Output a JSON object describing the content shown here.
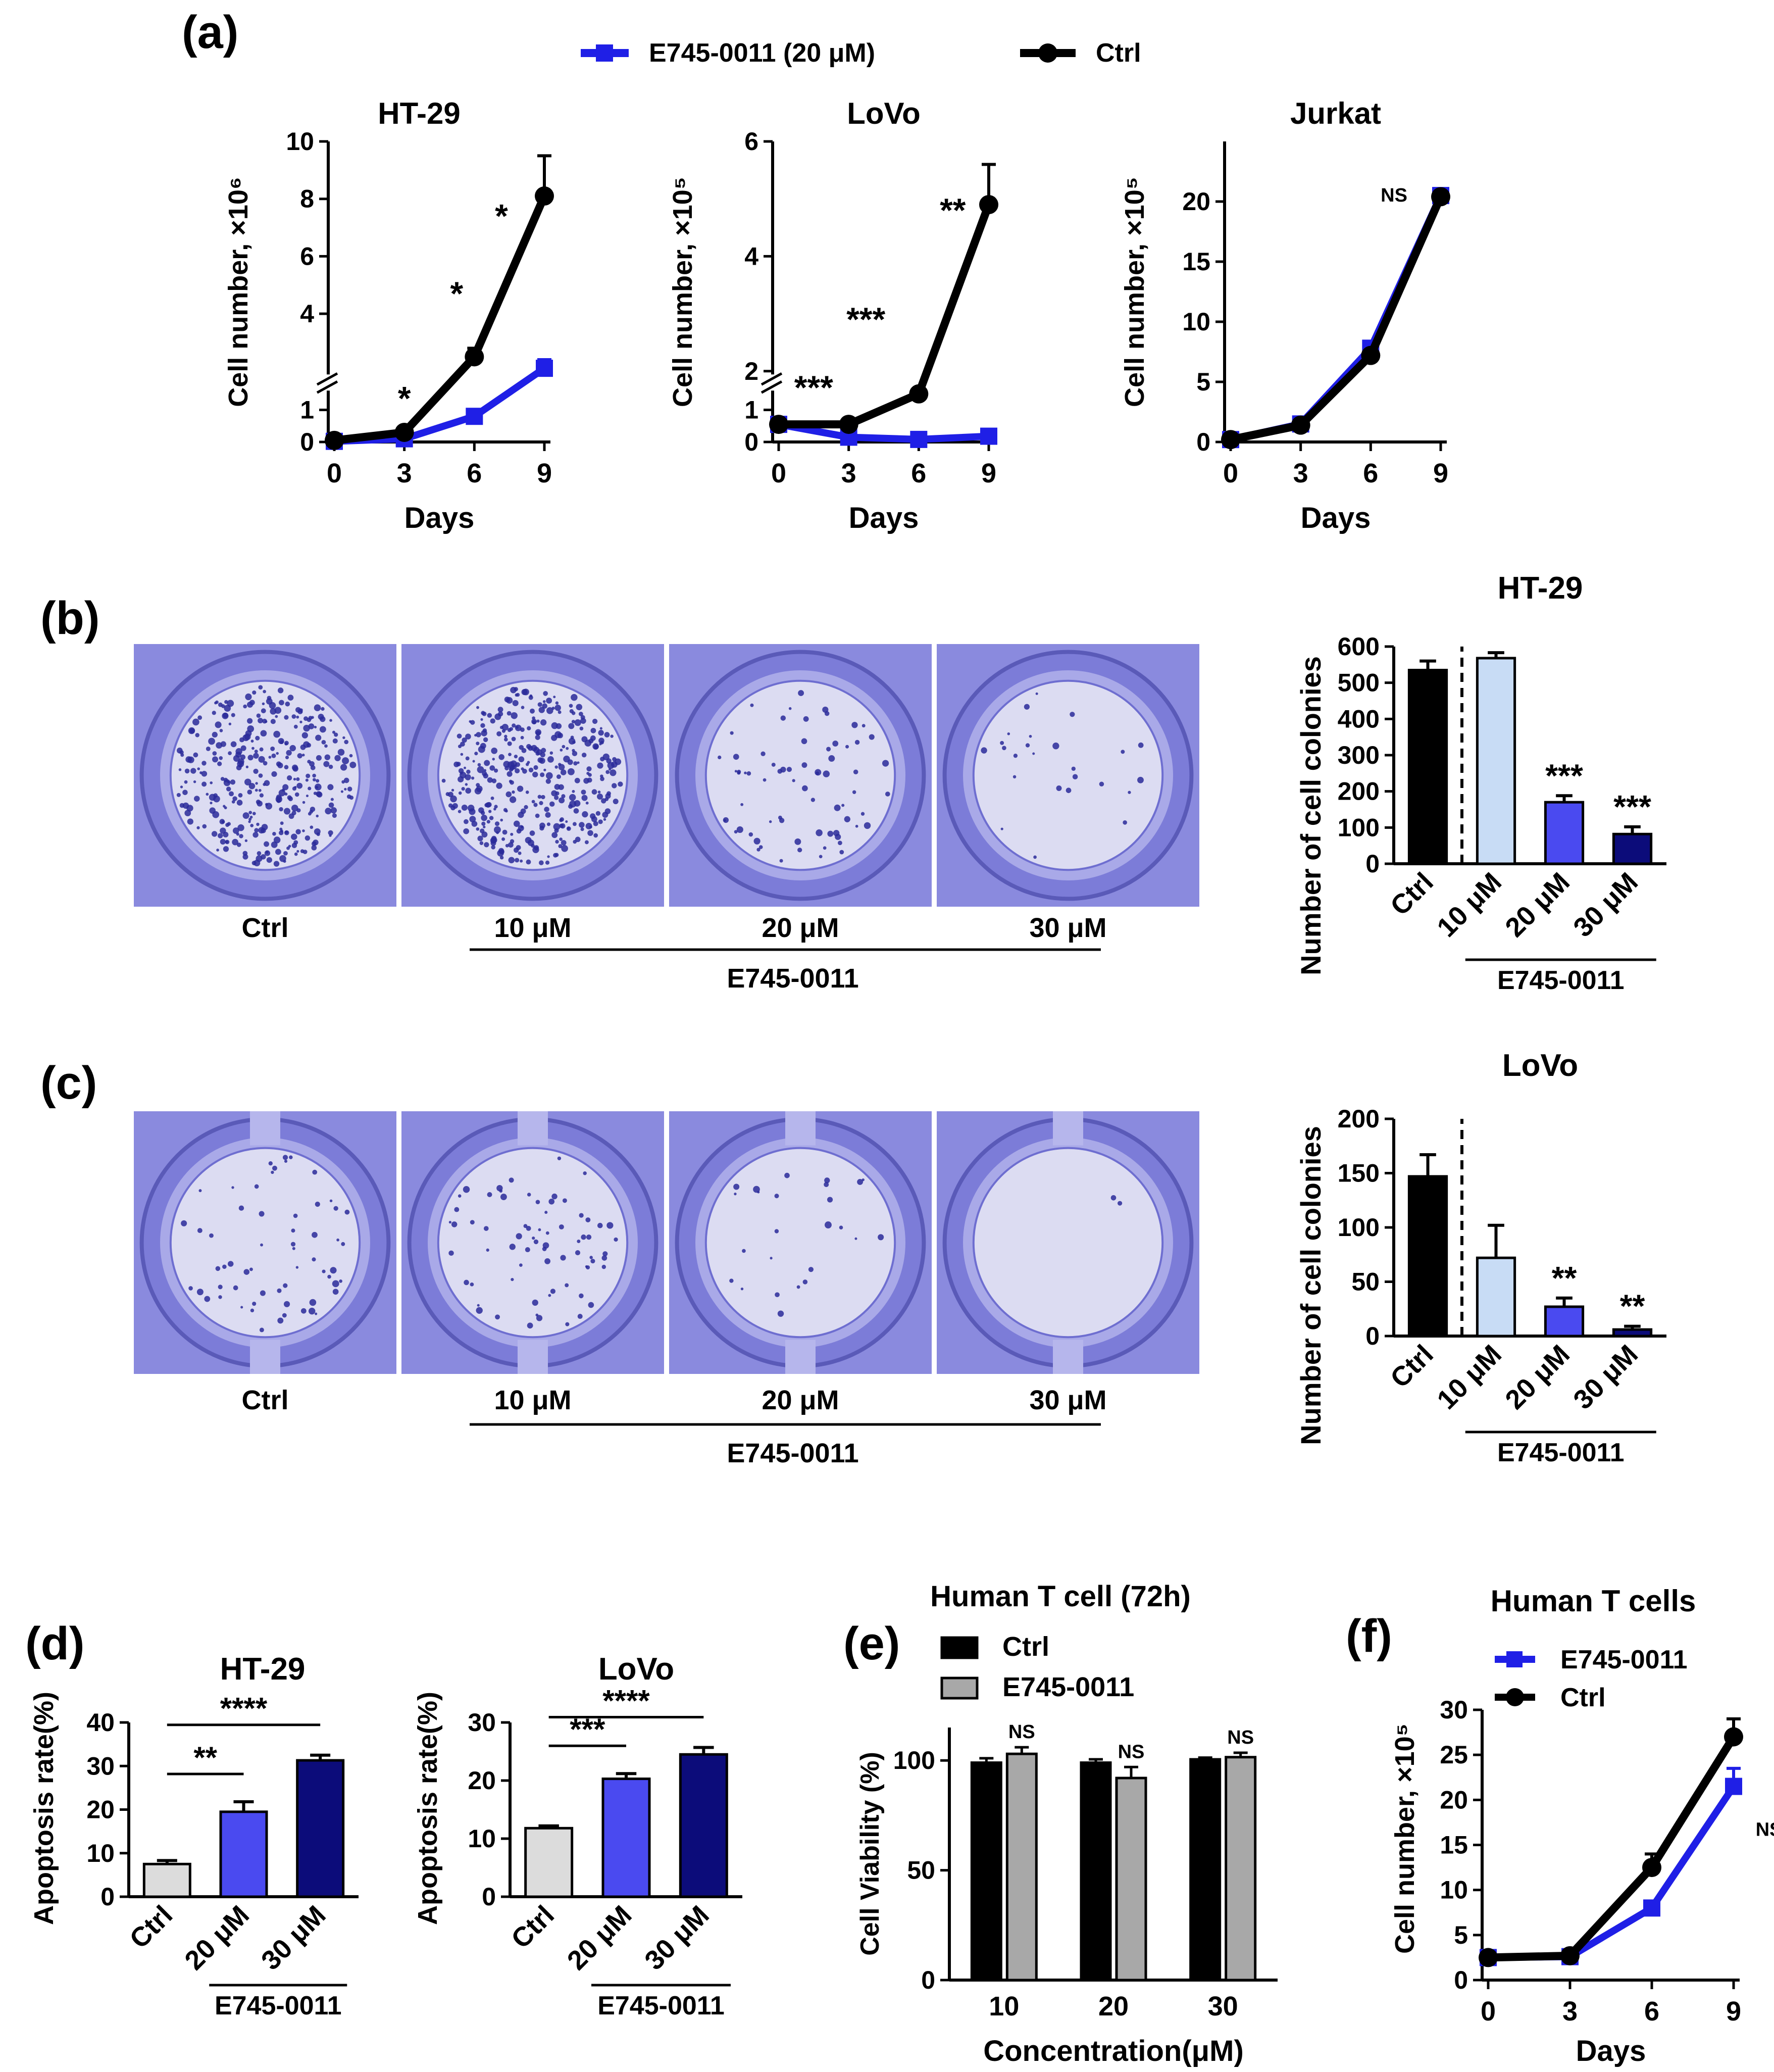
{
  "colors": {
    "ctrl": "#000000",
    "treat": "#1f1fe6",
    "light_blue": "#c8dcf5",
    "mid_blue": "#4a4af0",
    "dark_blue": "#0c0c7a",
    "light_gray": "#dcdcdc",
    "gray_bar": "#a8a8a8",
    "plate": "#8a8ade",
    "plate_inner": "#dcdcf2"
  },
  "panel_labels": {
    "a": "(a)",
    "b": "(b)",
    "c": "(c)",
    "d": "(d)",
    "e": "(e)",
    "f": "(f)"
  },
  "legend_a": {
    "treat": "E745-0011 (20 μM)",
    "ctrl": "Ctrl"
  },
  "plates": {
    "labels": [
      "Ctrl",
      "10 μM",
      "20 μM",
      "30 μM"
    ],
    "group": "E745-0011",
    "b_colony_density": [
      340,
      380,
      70,
      25
    ],
    "c_colony_density": [
      60,
      70,
      25,
      2
    ]
  },
  "chart_data": [
    {
      "id": "a1",
      "type": "line",
      "title": "HT-29",
      "xlabel": "Days",
      "ylabel": "Cell number, ×10⁶",
      "x": [
        0,
        3,
        6,
        9
      ],
      "xlim": [
        0,
        9
      ],
      "ylim": [
        0,
        10
      ],
      "axis_break": [
        1.5,
        2
      ],
      "yticks": [
        0,
        1,
        4,
        6,
        8,
        10
      ],
      "xticks": [
        0,
        3,
        6,
        9
      ],
      "series": [
        {
          "name": "Ctrl",
          "values": [
            0.05,
            0.3,
            2.5,
            8.1
          ],
          "errors": [
            0.02,
            0.05,
            0.3,
            1.4
          ]
        },
        {
          "name": "E745-0011 (20 μM)",
          "values": [
            0.02,
            0.1,
            0.8,
            2.1
          ],
          "errors": [
            0.01,
            0.03,
            0.15,
            0.3
          ]
        }
      ],
      "annotations": [
        {
          "x": 3,
          "text": "*"
        },
        {
          "x": 6,
          "text": "*"
        },
        {
          "x": 9,
          "text": "*"
        }
      ]
    },
    {
      "id": "a2",
      "type": "line",
      "title": "LoVo",
      "xlabel": "Days",
      "ylabel": "Cell number, ×10⁵",
      "x": [
        0,
        3,
        6,
        9
      ],
      "xlim": [
        0,
        9
      ],
      "ylim": [
        0,
        6
      ],
      "axis_break": [
        1.5,
        2
      ],
      "yticks": [
        0,
        1,
        2,
        4,
        6
      ],
      "xticks": [
        0,
        3,
        6,
        9
      ],
      "series": [
        {
          "name": "Ctrl",
          "values": [
            0.55,
            0.55,
            1.5,
            4.9
          ],
          "errors": [
            0.03,
            0.03,
            0.05,
            0.7
          ]
        },
        {
          "name": "E745-0011 (20 μM)",
          "values": [
            0.55,
            0.15,
            0.08,
            0.18
          ],
          "errors": [
            0.05,
            0.05,
            0.03,
            0.05
          ]
        }
      ],
      "annotations": [
        {
          "x": 1.5,
          "text": "***"
        },
        {
          "x": 4.5,
          "text": "***"
        },
        {
          "x": 8,
          "text": "**"
        }
      ]
    },
    {
      "id": "a3",
      "type": "line",
      "title": "Jurkat",
      "xlabel": "Days",
      "ylabel": "Cell number, ×10⁵",
      "x": [
        0,
        3,
        6,
        9
      ],
      "xlim": [
        0,
        9
      ],
      "ylim": [
        0,
        25
      ],
      "yticks": [
        0,
        5,
        10,
        15,
        20
      ],
      "xticks": [
        0,
        3,
        6,
        9
      ],
      "series": [
        {
          "name": "Ctrl",
          "values": [
            0.2,
            1.4,
            7.2,
            20.4
          ],
          "errors": [
            0.1,
            0.2,
            0.3,
            0.2
          ]
        },
        {
          "name": "E745-0011 (20 μM)",
          "values": [
            0.2,
            1.5,
            7.8,
            20.5
          ],
          "errors": [
            0.1,
            0.2,
            0.3,
            0.2
          ]
        }
      ],
      "annotations": [
        {
          "x": 7,
          "text": "NS"
        }
      ]
    },
    {
      "id": "b",
      "type": "bar",
      "title": "HT-29",
      "ylabel": "Number of cell colonies",
      "group_label": "E745-0011",
      "categories": [
        "Ctrl",
        "10 μM",
        "20 μM",
        "30 μM"
      ],
      "values": [
        535,
        568,
        170,
        82
      ],
      "errors": [
        25,
        15,
        18,
        20
      ],
      "ylim": [
        0,
        600
      ],
      "yticks": [
        0,
        100,
        200,
        300,
        400,
        500,
        600
      ],
      "annotations": [
        "",
        "",
        "***",
        "***"
      ]
    },
    {
      "id": "c",
      "type": "bar",
      "title": "LoVo",
      "ylabel": "Number of cell colonies",
      "group_label": "E745-0011",
      "categories": [
        "Ctrl",
        "10 μM",
        "20 μM",
        "30 μM"
      ],
      "values": [
        147,
        72,
        27,
        6
      ],
      "errors": [
        20,
        30,
        8,
        3
      ],
      "ylim": [
        0,
        200
      ],
      "yticks": [
        0,
        50,
        100,
        150,
        200
      ],
      "annotations": [
        "",
        "",
        "**",
        "**"
      ]
    },
    {
      "id": "d1",
      "type": "bar",
      "title": "HT-29",
      "ylabel": "Apoptosis rate(%)",
      "group_label": "E745-0011",
      "categories": [
        "Ctrl",
        "20 μM",
        "30 μM"
      ],
      "values": [
        7.5,
        19.5,
        31.3
      ],
      "errors": [
        0.8,
        2.3,
        1.2
      ],
      "ylim": [
        0,
        40
      ],
      "yticks": [
        0,
        10,
        20,
        30,
        40
      ],
      "brackets": [
        {
          "from": 0,
          "to": 1,
          "text": "**"
        },
        {
          "from": 0,
          "to": 2,
          "text": "****"
        }
      ]
    },
    {
      "id": "d2",
      "type": "bar",
      "title": "LoVo",
      "ylabel": "Apoptosis rate(%)",
      "group_label": "E745-0011",
      "categories": [
        "Ctrl",
        "20 μM",
        "30 μM"
      ],
      "values": [
        11.8,
        20.3,
        24.5
      ],
      "errors": [
        0.4,
        0.9,
        1.2
      ],
      "ylim": [
        0,
        30
      ],
      "yticks": [
        0,
        10,
        20,
        30
      ],
      "brackets": [
        {
          "from": 0,
          "to": 1,
          "text": "***"
        },
        {
          "from": 0,
          "to": 2,
          "text": "****"
        }
      ]
    },
    {
      "id": "e",
      "type": "bar",
      "title": "Human T cell (72h)",
      "xlabel": "Concentration(μM)",
      "ylabel": "Cell Viability (%)",
      "categories": [
        "10",
        "20",
        "30"
      ],
      "series": [
        {
          "name": "Ctrl",
          "values": [
            99,
            99,
            100.5
          ],
          "errors": [
            2,
            1.5,
            0.8
          ]
        },
        {
          "name": "E745-0011",
          "values": [
            103,
            92,
            101.5
          ],
          "errors": [
            3,
            5,
            2
          ]
        }
      ],
      "ylim": [
        0,
        115
      ],
      "yticks": [
        0,
        50,
        100
      ],
      "annotations": [
        "NS",
        "NS",
        "NS"
      ]
    },
    {
      "id": "f",
      "type": "line",
      "title": "Human T cells",
      "xlabel": "Days",
      "ylabel": "Cell number, ×10⁵",
      "x": [
        0,
        3,
        6,
        9
      ],
      "xlim": [
        0,
        9
      ],
      "ylim": [
        0,
        30
      ],
      "yticks": [
        0,
        5,
        10,
        15,
        20,
        25,
        30
      ],
      "xticks": [
        0,
        3,
        6,
        9
      ],
      "series": [
        {
          "name": "Ctrl",
          "values": [
            2.5,
            2.7,
            12.5,
            27
          ],
          "errors": [
            0.3,
            0.3,
            1.5,
            2
          ]
        },
        {
          "name": "E745-0011",
          "values": [
            2.5,
            2.6,
            8,
            21.5
          ],
          "errors": [
            0.3,
            0.3,
            0.5,
            2
          ]
        }
      ],
      "annotations": [
        {
          "x": 9,
          "text": "NS"
        }
      ]
    }
  ]
}
